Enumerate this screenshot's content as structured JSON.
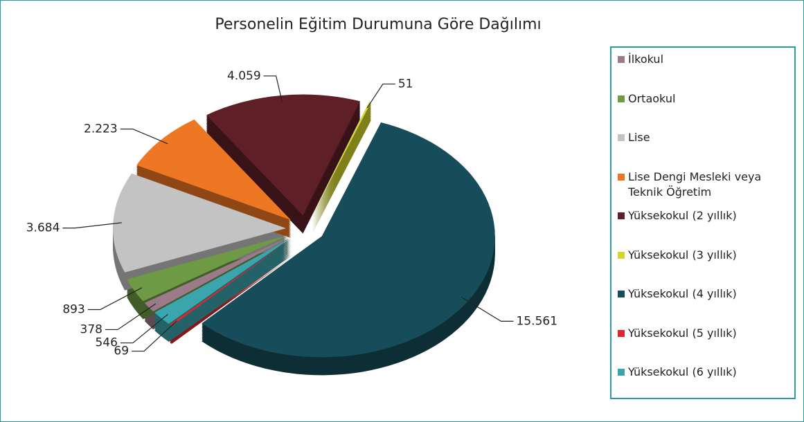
{
  "chart_data": {
    "type": "pie3d",
    "title": "Personelin Eğitim Durumuna Göre Dağılımı",
    "categories": [
      "İlkokul",
      "Ortaokul",
      "Lise",
      "Lise Dengi Mesleki veya Teknik Öğretim",
      "Yüksekokul (2 yıllık)",
      "Yüksekokul (3 yıllık)",
      "Yüksekokul (4 yıllık)",
      "Yüksekokul (5 yıllık)",
      "Yüksekokul (6 yıllık)"
    ],
    "values": [
      378,
      893,
      3684,
      2223,
      4059,
      51,
      15561,
      69,
      546
    ],
    "value_labels": [
      "378",
      "893",
      "3.684",
      "2.223",
      "4.059",
      "51",
      "15.561",
      "69",
      "546"
    ],
    "colors": [
      "#9b7b8a",
      "#6f9a45",
      "#c3c3c3",
      "#ee7723",
      "#5e1f26",
      "#d4d62d",
      "#174d5a",
      "#e0262c",
      "#3aa5ad"
    ],
    "legend": "right"
  }
}
